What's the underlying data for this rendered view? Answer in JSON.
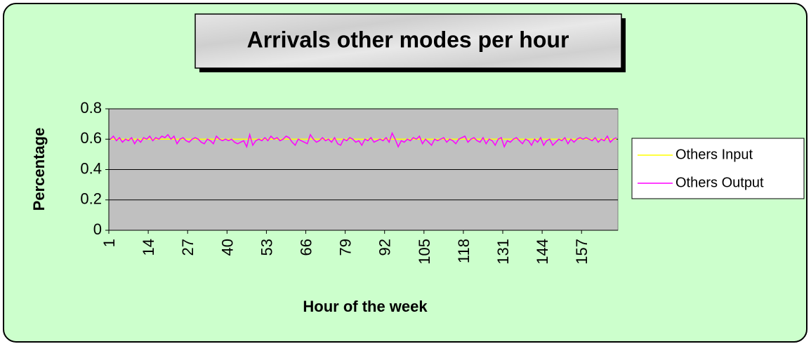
{
  "chart_data": {
    "type": "line",
    "title": "Arrivals other modes per hour",
    "x_label": "Hour of the week",
    "y_label": "Percentage",
    "categories": [
      1,
      null,
      null,
      null,
      null,
      null,
      null,
      null,
      null,
      null,
      null,
      null,
      null,
      14,
      null,
      null,
      null,
      null,
      null,
      null,
      null,
      null,
      null,
      null,
      null,
      null,
      27,
      null,
      null,
      null,
      null,
      null,
      null,
      null,
      null,
      null,
      null,
      null,
      null,
      40,
      null,
      null,
      null,
      null,
      null,
      null,
      null,
      null,
      null,
      null,
      null,
      null,
      53,
      null,
      null,
      null,
      null,
      null,
      null,
      null,
      null,
      null,
      null,
      null,
      null,
      66,
      null,
      null,
      null,
      null,
      null,
      null,
      null,
      null,
      null,
      null,
      null,
      null,
      79,
      null,
      null,
      null,
      null,
      null,
      null,
      null,
      null,
      null,
      null,
      null,
      null,
      92,
      null,
      null,
      null,
      null,
      null,
      null,
      null,
      null,
      null,
      null,
      null,
      null,
      105,
      null,
      null,
      null,
      null,
      null,
      null,
      null,
      null,
      null,
      null,
      null,
      null,
      118,
      null,
      null,
      null,
      null,
      null,
      null,
      null,
      null,
      null,
      null,
      null,
      null,
      131,
      null,
      null,
      null,
      null,
      null,
      null,
      null,
      null,
      null,
      null,
      null,
      null,
      144,
      null,
      null,
      null,
      null,
      null,
      null,
      null,
      null,
      null,
      null,
      null,
      null,
      157,
      null,
      null,
      null,
      null,
      null,
      null,
      null,
      null,
      null,
      null,
      null
    ],
    "series": [
      {
        "name": "Others Input",
        "color": "#ffff00",
        "values": [
          0.6,
          0.6,
          0.6,
          0.6,
          0.6,
          0.6,
          0.6,
          0.6,
          0.6,
          0.6,
          0.6,
          0.6,
          0.6,
          0.6,
          0.6,
          0.6,
          0.6,
          0.6,
          0.6,
          0.6,
          0.6,
          0.6,
          0.6,
          0.6,
          0.6,
          0.6,
          0.6,
          0.6,
          0.6,
          0.6,
          0.6,
          0.6,
          0.6,
          0.6,
          0.6,
          0.6,
          0.6,
          0.6,
          0.6,
          0.6,
          0.6,
          0.6,
          0.6,
          0.6,
          0.6,
          0.6,
          0.6,
          0.6,
          0.6,
          0.6,
          0.6,
          0.6,
          0.6,
          0.6,
          0.6,
          0.6,
          0.6,
          0.6,
          0.6,
          0.6,
          0.6,
          0.6,
          0.6,
          0.6,
          0.6,
          0.6,
          0.6,
          0.6,
          0.6,
          0.6,
          0.6,
          0.6,
          0.6,
          0.6,
          0.6,
          0.6,
          0.6,
          0.6,
          0.6,
          0.6,
          0.6,
          0.6,
          0.6,
          0.6,
          0.6,
          0.6,
          0.6,
          0.6,
          0.6,
          0.6,
          0.6,
          0.6,
          0.6,
          0.6,
          0.6,
          0.6,
          0.6,
          0.6,
          0.6,
          0.6,
          0.6,
          0.6,
          0.6,
          0.6,
          0.6,
          0.6,
          0.6,
          0.6,
          0.6,
          0.6,
          0.6,
          0.6,
          0.6,
          0.6,
          0.6,
          0.6,
          0.6,
          0.6,
          0.6,
          0.6,
          0.6,
          0.6,
          0.6,
          0.6,
          0.6,
          0.6,
          0.6,
          0.6,
          0.6,
          0.6,
          0.6,
          0.6,
          0.6,
          0.6,
          0.6,
          0.6,
          0.6,
          0.6,
          0.6,
          0.6,
          0.6,
          0.6,
          0.6,
          0.6,
          0.6,
          0.6,
          0.6,
          0.6,
          0.6,
          0.6,
          0.6,
          0.6,
          0.6,
          0.6,
          0.6,
          0.6,
          0.6,
          0.6,
          0.6,
          0.6,
          0.6,
          0.6,
          0.6,
          0.6,
          0.6,
          0.6,
          0.6,
          0.6
        ]
      },
      {
        "name": "Others Output",
        "color": "#ff00ff",
        "values": [
          0.6,
          0.62,
          0.59,
          0.61,
          0.58,
          0.6,
          0.59,
          0.61,
          0.57,
          0.6,
          0.58,
          0.61,
          0.6,
          0.62,
          0.59,
          0.61,
          0.6,
          0.62,
          0.61,
          0.63,
          0.6,
          0.62,
          0.57,
          0.6,
          0.61,
          0.59,
          0.58,
          0.6,
          0.61,
          0.6,
          0.58,
          0.57,
          0.6,
          0.59,
          0.57,
          0.62,
          0.6,
          0.59,
          0.6,
          0.59,
          0.6,
          0.58,
          0.57,
          0.58,
          0.59,
          0.55,
          0.63,
          0.56,
          0.59,
          0.6,
          0.59,
          0.61,
          0.59,
          0.62,
          0.6,
          0.61,
          0.59,
          0.6,
          0.62,
          0.61,
          0.58,
          0.56,
          0.6,
          0.59,
          0.58,
          0.57,
          0.63,
          0.6,
          0.58,
          0.59,
          0.61,
          0.59,
          0.6,
          0.58,
          0.61,
          0.57,
          0.56,
          0.6,
          0.59,
          0.61,
          0.6,
          0.58,
          0.59,
          0.56,
          0.6,
          0.59,
          0.61,
          0.58,
          0.59,
          0.6,
          0.59,
          0.61,
          0.58,
          0.64,
          0.6,
          0.55,
          0.59,
          0.58,
          0.6,
          0.59,
          0.61,
          0.6,
          0.62,
          0.57,
          0.6,
          0.58,
          0.56,
          0.6,
          0.59,
          0.6,
          0.61,
          0.58,
          0.6,
          0.59,
          0.57,
          0.6,
          0.61,
          0.62,
          0.58,
          0.6,
          0.61,
          0.59,
          0.58,
          0.61,
          0.57,
          0.6,
          0.59,
          0.56,
          0.6,
          0.61,
          0.55,
          0.59,
          0.58,
          0.6,
          0.61,
          0.59,
          0.57,
          0.6,
          0.59,
          0.56,
          0.6,
          0.58,
          0.61,
          0.56,
          0.59,
          0.6,
          0.56,
          0.58,
          0.6,
          0.59,
          0.61,
          0.57,
          0.6,
          0.58,
          0.6,
          0.61,
          0.6,
          0.61,
          0.6,
          0.59,
          0.61,
          0.58,
          0.6,
          0.59,
          0.62,
          0.58,
          0.6,
          0.61
        ]
      }
    ],
    "ylim": [
      0,
      0.8
    ],
    "yticks": [
      0,
      0.2,
      0.4,
      0.6,
      0.8
    ],
    "grid": true,
    "legend": "right"
  }
}
